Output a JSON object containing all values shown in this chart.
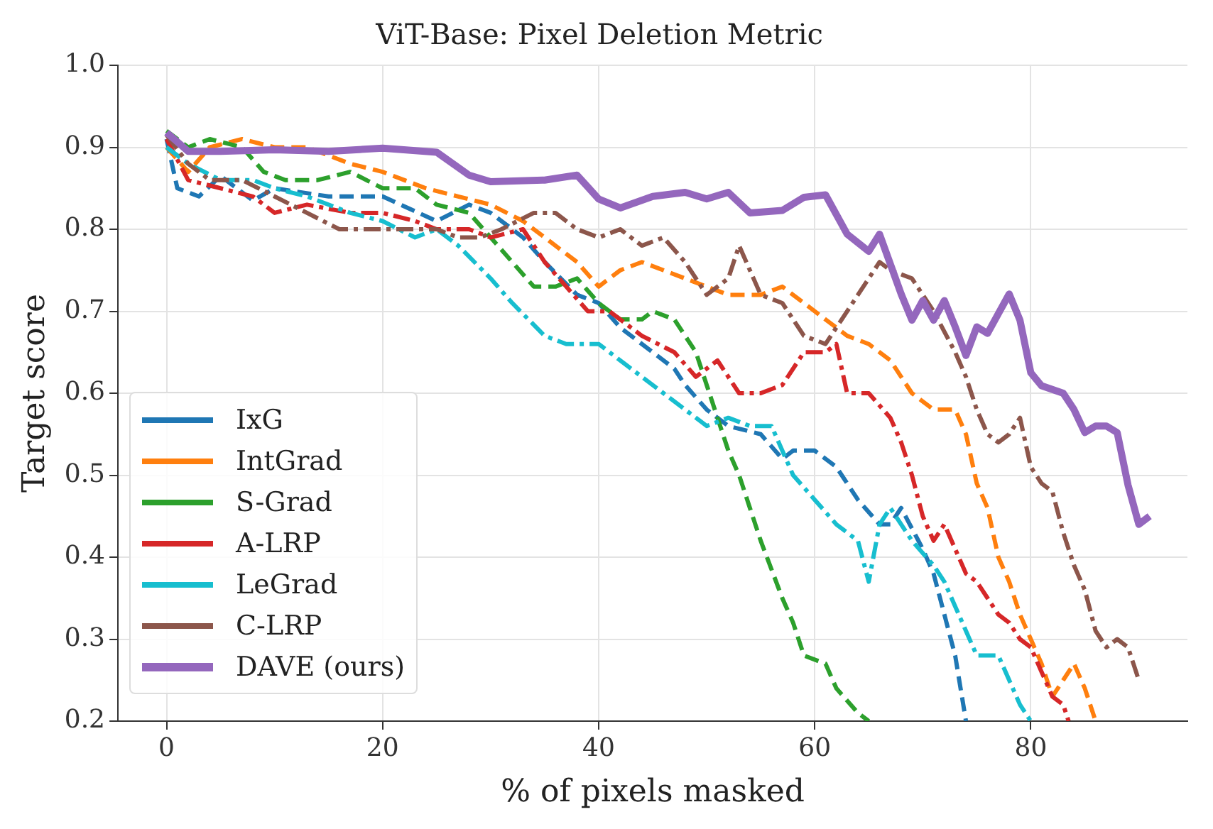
{
  "chart_data": {
    "type": "line",
    "title": "ViT-Base: Pixel Deletion Metric",
    "xlabel": "% of pixels masked",
    "ylabel": "Target score",
    "xlim": [
      -4.5,
      94.5
    ],
    "xticks": [
      0,
      20,
      40,
      60,
      80
    ],
    "ylim": [
      0.2,
      1.0
    ],
    "yticks": [
      {
        "value": 0.2,
        "label": "0.2"
      },
      {
        "value": 0.3,
        "label": "0.3"
      },
      {
        "value": 0.4,
        "label": "0.4"
      },
      {
        "value": 0.5,
        "label": "0.5"
      },
      {
        "value": 0.6,
        "label": "0.6"
      },
      {
        "value": 0.7,
        "label": "0.7"
      },
      {
        "value": 0.8,
        "label": "0.8"
      },
      {
        "value": 0.9,
        "label": "0.9"
      },
      {
        "value": 1,
        "label": "1.0"
      }
    ],
    "grid": true,
    "legend": "bottom left",
    "marker": "none",
    "series": [
      {
        "name": "IxG",
        "color": "#1f77b4",
        "line_style": "dashed",
        "x": [
          0,
          1,
          3,
          5,
          8,
          10,
          15,
          20,
          25,
          28,
          30,
          33,
          35,
          38,
          40,
          42,
          45,
          47,
          48,
          50,
          52,
          55,
          57,
          58,
          60,
          62,
          64,
          66,
          67,
          68,
          70,
          71,
          72,
          73,
          74
        ],
        "values": [
          0.91,
          0.85,
          0.84,
          0.865,
          0.835,
          0.85,
          0.84,
          0.84,
          0.81,
          0.83,
          0.82,
          0.79,
          0.76,
          0.72,
          0.71,
          0.68,
          0.65,
          0.63,
          0.61,
          0.58,
          0.56,
          0.55,
          0.52,
          0.53,
          0.53,
          0.51,
          0.47,
          0.44,
          0.44,
          0.46,
          0.41,
          0.38,
          0.33,
          0.28,
          0.2
        ]
      },
      {
        "name": "IntGrad",
        "color": "#ff7f0e",
        "line_style": "dashed",
        "x": [
          0,
          2,
          4,
          7,
          10,
          13,
          17,
          20,
          24,
          27,
          30,
          33,
          35,
          38,
          40,
          42,
          44,
          46,
          48,
          50,
          52,
          55,
          57,
          59,
          61,
          63,
          65,
          67,
          69,
          71,
          73,
          74,
          75,
          76,
          77,
          78,
          79,
          80,
          81,
          82,
          83,
          84,
          85,
          86
        ],
        "values": [
          0.9,
          0.87,
          0.9,
          0.91,
          0.9,
          0.9,
          0.88,
          0.87,
          0.85,
          0.84,
          0.83,
          0.81,
          0.79,
          0.76,
          0.73,
          0.75,
          0.76,
          0.75,
          0.74,
          0.73,
          0.72,
          0.72,
          0.73,
          0.71,
          0.69,
          0.67,
          0.66,
          0.64,
          0.6,
          0.58,
          0.58,
          0.55,
          0.49,
          0.46,
          0.4,
          0.37,
          0.33,
          0.3,
          0.27,
          0.23,
          0.25,
          0.27,
          0.24,
          0.2
        ]
      },
      {
        "name": "S-Grad",
        "color": "#2ca02c",
        "line_style": "dashed",
        "x": [
          0,
          2,
          4,
          7,
          9,
          11,
          14,
          17,
          20,
          23,
          25,
          28,
          30,
          32,
          34,
          36,
          38,
          40,
          42,
          44,
          45,
          47,
          49,
          50,
          51,
          52,
          53,
          54,
          55,
          57,
          58,
          59,
          61,
          62,
          64,
          65
        ],
        "values": [
          0.92,
          0.9,
          0.91,
          0.9,
          0.87,
          0.86,
          0.86,
          0.87,
          0.85,
          0.85,
          0.83,
          0.82,
          0.79,
          0.76,
          0.73,
          0.73,
          0.74,
          0.71,
          0.69,
          0.69,
          0.7,
          0.69,
          0.65,
          0.61,
          0.57,
          0.53,
          0.5,
          0.46,
          0.42,
          0.35,
          0.32,
          0.28,
          0.27,
          0.24,
          0.21,
          0.2
        ]
      },
      {
        "name": "A-LRP",
        "color": "#d62728",
        "line_style": "dashdot",
        "x": [
          0,
          2,
          5,
          8,
          10,
          13,
          17,
          20,
          23,
          25,
          28,
          30,
          33,
          35,
          37,
          39,
          41,
          44,
          47,
          49,
          51,
          53,
          55,
          57,
          59,
          61,
          62,
          63,
          65,
          67,
          68,
          69,
          70,
          71,
          72,
          73,
          74,
          75,
          76,
          77,
          78,
          79,
          80,
          81,
          82,
          83,
          83.5
        ],
        "values": [
          0.91,
          0.86,
          0.85,
          0.84,
          0.82,
          0.83,
          0.82,
          0.82,
          0.81,
          0.8,
          0.8,
          0.79,
          0.8,
          0.76,
          0.73,
          0.7,
          0.7,
          0.67,
          0.65,
          0.62,
          0.64,
          0.6,
          0.6,
          0.61,
          0.65,
          0.65,
          0.66,
          0.6,
          0.6,
          0.57,
          0.54,
          0.5,
          0.45,
          0.42,
          0.44,
          0.41,
          0.38,
          0.37,
          0.35,
          0.33,
          0.32,
          0.3,
          0.29,
          0.26,
          0.23,
          0.22,
          0.2
        ]
      },
      {
        "name": "LeGrad",
        "color": "#17becf",
        "line_style": "dashdot",
        "x": [
          0,
          2,
          5,
          8,
          10,
          13,
          17,
          20,
          23,
          25,
          27,
          30,
          32,
          35,
          37,
          40,
          42,
          44,
          46,
          48,
          50,
          52,
          54,
          56,
          58,
          60,
          62,
          64,
          65,
          66,
          67,
          69,
          71,
          72,
          74,
          75,
          76,
          77,
          78,
          79,
          80
        ],
        "values": [
          0.9,
          0.88,
          0.86,
          0.86,
          0.85,
          0.84,
          0.82,
          0.81,
          0.79,
          0.8,
          0.78,
          0.74,
          0.71,
          0.67,
          0.66,
          0.66,
          0.64,
          0.62,
          0.6,
          0.58,
          0.56,
          0.57,
          0.56,
          0.56,
          0.5,
          0.47,
          0.44,
          0.42,
          0.37,
          0.44,
          0.46,
          0.42,
          0.39,
          0.37,
          0.31,
          0.28,
          0.28,
          0.28,
          0.25,
          0.22,
          0.2
        ]
      },
      {
        "name": "C-LRP",
        "color": "#8c564b",
        "line_style": "dashdot",
        "x": [
          0,
          2,
          4,
          7,
          10,
          13,
          16,
          19,
          22,
          25,
          27,
          29,
          31,
          34,
          36,
          38,
          40,
          42,
          44,
          46,
          48,
          50,
          52,
          53,
          55,
          57,
          59,
          61,
          62,
          64,
          66,
          67,
          69,
          71,
          73,
          74,
          75,
          76,
          77,
          78,
          79,
          80,
          81,
          82,
          83,
          84,
          85,
          86,
          87,
          88,
          89,
          90
        ],
        "values": [
          0.915,
          0.88,
          0.86,
          0.86,
          0.84,
          0.82,
          0.8,
          0.8,
          0.8,
          0.8,
          0.79,
          0.79,
          0.8,
          0.82,
          0.82,
          0.8,
          0.79,
          0.8,
          0.78,
          0.79,
          0.76,
          0.72,
          0.74,
          0.78,
          0.72,
          0.71,
          0.67,
          0.66,
          0.68,
          0.72,
          0.76,
          0.75,
          0.74,
          0.7,
          0.65,
          0.62,
          0.58,
          0.55,
          0.54,
          0.55,
          0.57,
          0.51,
          0.49,
          0.48,
          0.43,
          0.39,
          0.36,
          0.31,
          0.29,
          0.3,
          0.29,
          0.25
        ]
      },
      {
        "name": "DAVE (ours)",
        "color": "#9467bd",
        "line_style": "solid",
        "x": [
          0,
          2,
          5,
          10,
          15,
          20,
          25,
          28,
          30,
          35,
          38,
          40,
          42,
          45,
          48,
          50,
          52,
          54,
          57,
          59,
          61,
          63,
          65,
          66,
          68,
          69,
          70,
          71,
          72,
          73,
          74,
          75,
          76,
          77,
          78,
          79,
          80,
          81,
          83,
          84,
          85,
          86,
          87,
          88,
          89,
          90,
          91
        ],
        "values": [
          0.918,
          0.895,
          0.895,
          0.897,
          0.895,
          0.899,
          0.894,
          0.866,
          0.858,
          0.86,
          0.866,
          0.837,
          0.826,
          0.84,
          0.845,
          0.837,
          0.845,
          0.82,
          0.823,
          0.839,
          0.842,
          0.794,
          0.773,
          0.794,
          0.721,
          0.689,
          0.713,
          0.689,
          0.713,
          0.681,
          0.646,
          0.681,
          0.673,
          0.697,
          0.721,
          0.689,
          0.625,
          0.609,
          0.6,
          0.58,
          0.552,
          0.56,
          0.56,
          0.552,
          0.488,
          0.44,
          0.45
        ]
      }
    ]
  }
}
